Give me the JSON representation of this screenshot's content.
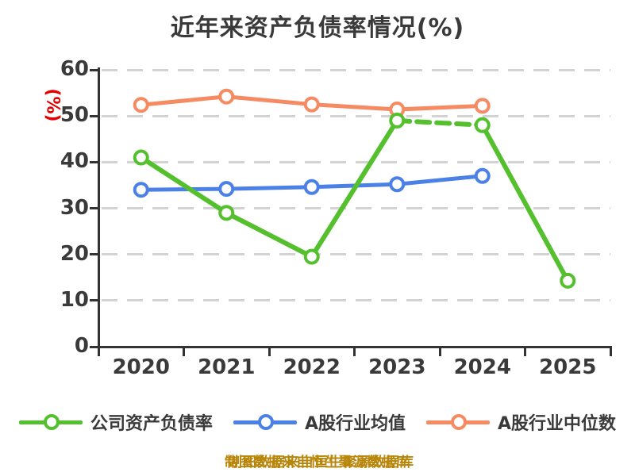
{
  "title": "近年来资产负债率情况(%)",
  "y_axis_unit_label": "(%)",
  "caption": "制图数据来自恒生聚源数据库",
  "colors": {
    "title_text": "#3a3a3a",
    "axis": "#333333",
    "gridline": "#d3d3d3",
    "tick_label": "#3a3a3a",
    "y_unit_label": "#e60000",
    "caption_text": "#b8860b",
    "marker_fill": "#ffffff"
  },
  "chart_data": {
    "type": "line",
    "title": "近年来资产负债率情况(%)",
    "xlabel": "",
    "ylabel": "(%)",
    "categories": [
      "2020",
      "2021",
      "2022",
      "2023",
      "2024",
      "2025"
    ],
    "y_ticks": [
      0,
      10,
      20,
      30,
      40,
      50,
      60
    ],
    "ylim": [
      0,
      60
    ],
    "grid": "horizontal dashed",
    "legend_position": "bottom",
    "series": [
      {
        "name": "公司资产负债率",
        "color": "#55c02e",
        "values": [
          41,
          29,
          19.5,
          49,
          48,
          14.3
        ],
        "dashed_segments": [
          3
        ],
        "line_width": 6
      },
      {
        "name": "A股行业均值",
        "color": "#4b80e6",
        "values": [
          34,
          34.2,
          34.6,
          35.2,
          37,
          null
        ],
        "dashed_segments": [],
        "line_width": 5
      },
      {
        "name": "A股行业中位数",
        "color": "#f58a63",
        "values": [
          52.4,
          54.2,
          52.5,
          51.4,
          52.2,
          null
        ],
        "dashed_segments": [],
        "line_width": 5
      }
    ]
  }
}
